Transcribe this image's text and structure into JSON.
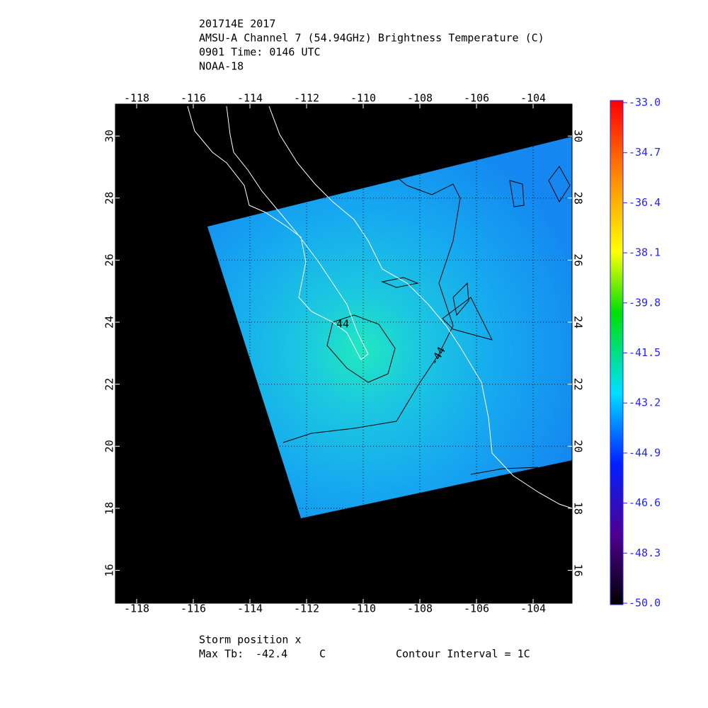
{
  "title_lines": [
    "201714E 2017",
    "AMSU-A Channel 7 (54.94GHz) Brightness Temperature (C)",
    "0901 Time: 0146 UTC",
    "NOAA-18"
  ],
  "chart_data": {
    "type": "map",
    "xlim": [
      -118.75,
      -102.625
    ],
    "ylim": [
      14.94,
      31.03
    ],
    "xticks": [
      -118,
      -116,
      -114,
      -112,
      -110,
      -108,
      -106,
      -104
    ],
    "yticks": [
      16,
      18,
      20,
      22,
      24,
      26,
      28,
      30
    ],
    "grid": true,
    "colorbar": {
      "lim": [
        -50,
        -33
      ],
      "ticks": [
        {
          "value": -33,
          "label": "-33.0"
        },
        {
          "value": -34.7,
          "label": "-34.7"
        },
        {
          "value": -36.4,
          "label": "-36.4"
        },
        {
          "value": -38.1,
          "label": "-38.1"
        },
        {
          "value": -39.8,
          "label": "-39.8"
        },
        {
          "value": -41.5,
          "label": "-41.5"
        },
        {
          "value": -43.2,
          "label": "-43.2"
        },
        {
          "value": -44.9,
          "label": "-44.9"
        },
        {
          "value": -46.6,
          "label": "-46.6"
        },
        {
          "value": -48.3,
          "label": "-48.3"
        },
        {
          "value": -50,
          "label": "-50.0"
        }
      ]
    },
    "annotations": [
      "44",
      "-44"
    ]
  },
  "footer": {
    "storm": "Storm position x",
    "max_tb_label": "Max Tb:",
    "max_tb": -42.4,
    "max_tb_unit": "C",
    "contour": "Contour Interval = 1C"
  }
}
